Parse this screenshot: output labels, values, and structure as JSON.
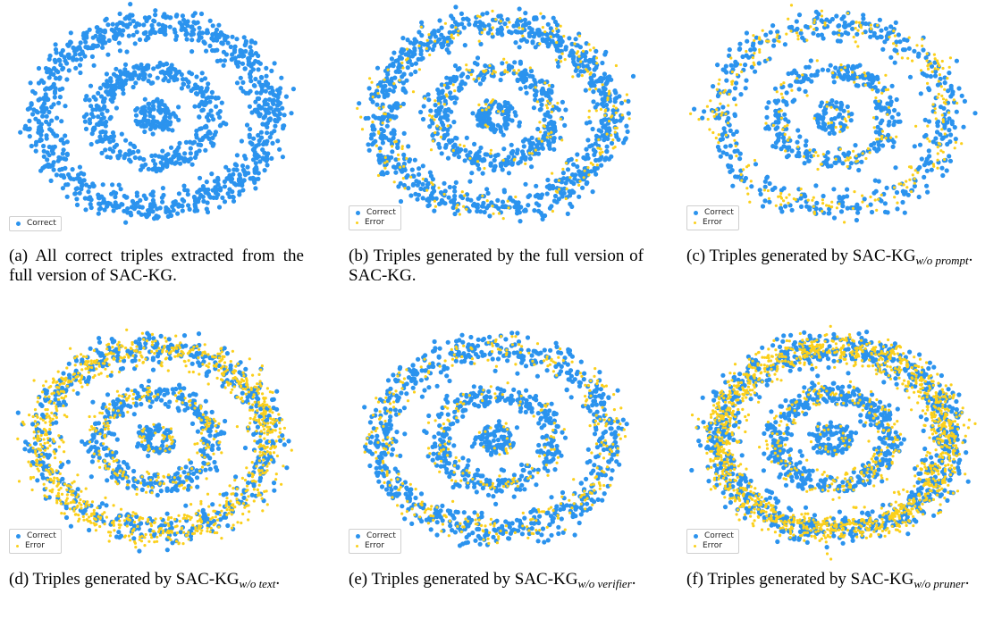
{
  "palette": {
    "correct": "#2b93ee",
    "error": "#fbd01c"
  },
  "legend": {
    "correct": "Correct",
    "error": "Error"
  },
  "chart_data": [
    {
      "type": "scatter",
      "panel": "a",
      "caption": "(a) All correct triples extracted from the full version of SAC-KG.",
      "caption_sub": "",
      "caption_end": "",
      "legend_entries": [
        "Correct"
      ],
      "series": [
        {
          "name": "Correct",
          "color": "#2b93ee",
          "rings": {
            "inner": 100,
            "middle": 400,
            "outer": 900
          }
        }
      ],
      "rings_radius": {
        "inner": 0.1,
        "middle": 0.4,
        "outer": 0.8
      },
      "legend_position": "lower-left"
    },
    {
      "type": "scatter",
      "panel": "b",
      "caption": "(b) Triples generated by the full version of SAC-KG.",
      "caption_sub": "",
      "caption_end": "",
      "legend_entries": [
        "Correct",
        "Error"
      ],
      "series": [
        {
          "name": "Correct",
          "color": "#2b93ee",
          "rings": {
            "inner": 100,
            "middle": 380,
            "outer": 820
          }
        },
        {
          "name": "Error",
          "color": "#fbd01c",
          "rings": {
            "inner": 12,
            "middle": 80,
            "outer": 200
          }
        }
      ],
      "rings_radius": {
        "inner": 0.1,
        "middle": 0.4,
        "outer": 0.8
      },
      "legend_position": "lower-left"
    },
    {
      "type": "scatter",
      "panel": "c",
      "caption": "(c) Triples generated by SAC-KG",
      "caption_sub": "w/o prompt",
      "caption_end": ".",
      "legend_entries": [
        "Correct",
        "Error"
      ],
      "series": [
        {
          "name": "Correct",
          "color": "#2b93ee",
          "rings": {
            "inner": 60,
            "middle": 260,
            "outer": 420
          }
        },
        {
          "name": "Error",
          "color": "#fbd01c",
          "rings": {
            "inner": 15,
            "middle": 80,
            "outer": 240
          }
        }
      ],
      "rings_radius": {
        "inner": 0.1,
        "middle": 0.4,
        "outer": 0.8
      },
      "legend_position": "lower-left"
    },
    {
      "type": "scatter",
      "panel": "d",
      "caption": "(d) Triples generated by SAC-KG",
      "caption_sub": "w/o text",
      "caption_end": ".",
      "legend_entries": [
        "Correct",
        "Error"
      ],
      "series": [
        {
          "name": "Correct",
          "color": "#2b93ee",
          "rings": {
            "inner": 70,
            "middle": 320,
            "outer": 550
          }
        },
        {
          "name": "Error",
          "color": "#fbd01c",
          "rings": {
            "inner": 30,
            "middle": 180,
            "outer": 900
          }
        }
      ],
      "rings_radius": {
        "inner": 0.1,
        "middle": 0.4,
        "outer": 0.8
      },
      "legend_position": "lower-left"
    },
    {
      "type": "scatter",
      "panel": "e",
      "caption": "(e) Triples generated by SAC-KG",
      "caption_sub": "w/o verifier",
      "caption_end": ".",
      "legend_entries": [
        "Correct",
        "Error"
      ],
      "series": [
        {
          "name": "Correct",
          "color": "#2b93ee",
          "rings": {
            "inner": 80,
            "middle": 330,
            "outer": 650
          }
        },
        {
          "name": "Error",
          "color": "#fbd01c",
          "rings": {
            "inner": 15,
            "middle": 100,
            "outer": 300
          }
        }
      ],
      "rings_radius": {
        "inner": 0.1,
        "middle": 0.4,
        "outer": 0.8
      },
      "legend_position": "lower-left"
    },
    {
      "type": "scatter",
      "panel": "f",
      "caption": "(f) Triples generated by SAC-KG",
      "caption_sub": "w/o pruner",
      "caption_end": ".",
      "legend_entries": [
        "Correct",
        "Error"
      ],
      "series": [
        {
          "name": "Correct",
          "color": "#2b93ee",
          "rings": {
            "inner": 100,
            "middle": 420,
            "outer": 900
          }
        },
        {
          "name": "Error",
          "color": "#fbd01c",
          "rings": {
            "inner": 20,
            "middle": 200,
            "outer": 1300
          }
        }
      ],
      "rings_radius": {
        "inner": 0.1,
        "middle": 0.4,
        "outer": 0.8
      },
      "legend_position": "lower-left"
    }
  ]
}
